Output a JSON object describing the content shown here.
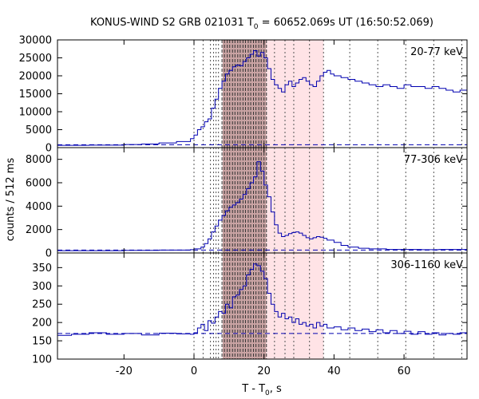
{
  "chart_data": {
    "type": "line",
    "title_parts": {
      "prefix": "KONUS-WIND S2 GRB 021031 T",
      "sub": "0",
      "suffix": " = 60652.069s UT (16:50:52.069)"
    },
    "xlabel_parts": {
      "prefix": "T - T",
      "sub": "0",
      "suffix": ", s"
    },
    "ylabel": "counts / 512 ms",
    "xlim": [
      -39,
      78
    ],
    "x_ticks": [
      -20,
      0,
      20,
      40,
      60
    ],
    "x_tick_labels": [
      "-20",
      "0",
      "20",
      "40",
      "60"
    ],
    "vertical_lines": [
      0,
      2.6,
      4.7,
      5.6,
      6.3,
      7.0,
      8.0,
      8.7,
      9.5,
      10.2,
      11.0,
      11.7,
      12.5,
      13.2,
      14.0,
      14.7,
      15.5,
      16.2,
      17.0,
      17.7,
      18.5,
      19.2,
      20.0,
      20.7,
      23.0,
      26.0,
      28.5,
      33.0,
      37.0,
      44.5,
      52.5,
      60.5,
      68.5,
      76.5
    ],
    "shaded_regions": [
      {
        "from": 8.2,
        "to": 20.6,
        "color": "#c9a3a3"
      },
      {
        "from": 20.6,
        "to": 37.0,
        "color": "#ffe3e6"
      }
    ],
    "series_color": "#0000b0",
    "background_line_style": "dashed",
    "panels": [
      {
        "label": "20-77 keV",
        "ylim": [
          0,
          30000
        ],
        "y_ticks": [
          0,
          5000,
          10000,
          15000,
          20000,
          25000,
          30000
        ],
        "y_tick_labels": [
          "0",
          "5000",
          "10000",
          "15000",
          "20000",
          "25000",
          "30000"
        ],
        "background": 800,
        "curve": [
          [
            -39,
            650
          ],
          [
            -30,
            700
          ],
          [
            -20,
            850
          ],
          [
            -15,
            1000
          ],
          [
            -10,
            1300
          ],
          [
            -5,
            1700
          ],
          [
            -1,
            2500
          ],
          [
            0,
            3500
          ],
          [
            1,
            5000
          ],
          [
            2,
            5800
          ],
          [
            3,
            7200
          ],
          [
            4,
            8000
          ],
          [
            5,
            11000
          ],
          [
            6,
            13500
          ],
          [
            7,
            16500
          ],
          [
            8,
            18500
          ],
          [
            9,
            20500
          ],
          [
            10,
            21500
          ],
          [
            11,
            22500
          ],
          [
            12,
            23000
          ],
          [
            13,
            22800
          ],
          [
            14,
            24000
          ],
          [
            15,
            25000
          ],
          [
            16,
            26000
          ],
          [
            17,
            27000
          ],
          [
            18,
            25500
          ],
          [
            19,
            26500
          ],
          [
            20,
            25000
          ],
          [
            21,
            22000
          ],
          [
            22,
            19000
          ],
          [
            23,
            17500
          ],
          [
            24,
            16500
          ],
          [
            25,
            15500
          ],
          [
            26,
            17500
          ],
          [
            27,
            18500
          ],
          [
            28,
            17000
          ],
          [
            29,
            18000
          ],
          [
            30,
            19000
          ],
          [
            31,
            19500
          ],
          [
            32,
            18500
          ],
          [
            33,
            17500
          ],
          [
            34,
            17000
          ],
          [
            35,
            18500
          ],
          [
            36,
            20000
          ],
          [
            37,
            21000
          ],
          [
            38,
            21500
          ],
          [
            39,
            20500
          ],
          [
            40,
            20000
          ],
          [
            42,
            19500
          ],
          [
            44,
            19000
          ],
          [
            46,
            18500
          ],
          [
            48,
            18000
          ],
          [
            50,
            17500
          ],
          [
            52,
            17000
          ],
          [
            54,
            17500
          ],
          [
            56,
            17000
          ],
          [
            58,
            16500
          ],
          [
            60,
            17500
          ],
          [
            62,
            17000
          ],
          [
            64,
            17000
          ],
          [
            66,
            16500
          ],
          [
            68,
            17000
          ],
          [
            70,
            16500
          ],
          [
            72,
            16000
          ],
          [
            74,
            15500
          ],
          [
            76,
            16000
          ],
          [
            78,
            15500
          ]
        ]
      },
      {
        "label": "77-306 keV",
        "ylim": [
          0,
          9000
        ],
        "y_ticks": [
          0,
          2000,
          4000,
          6000,
          8000
        ],
        "y_tick_labels": [
          "0",
          "2000",
          "4000",
          "6000",
          "8000"
        ],
        "background": 250,
        "curve": [
          [
            -39,
            200
          ],
          [
            -20,
            220
          ],
          [
            -10,
            250
          ],
          [
            -1,
            280
          ],
          [
            0,
            350
          ],
          [
            2,
            500
          ],
          [
            3,
            800
          ],
          [
            4,
            1200
          ],
          [
            5,
            1800
          ],
          [
            6,
            2300
          ],
          [
            7,
            2800
          ],
          [
            8,
            3200
          ],
          [
            9,
            3600
          ],
          [
            10,
            3900
          ],
          [
            11,
            4100
          ],
          [
            12,
            4300
          ],
          [
            13,
            4600
          ],
          [
            14,
            5000
          ],
          [
            15,
            5500
          ],
          [
            16,
            6000
          ],
          [
            17,
            6500
          ],
          [
            18,
            7800
          ],
          [
            19,
            7000
          ],
          [
            20,
            5800
          ],
          [
            21,
            4800
          ],
          [
            22,
            3500
          ],
          [
            23,
            2400
          ],
          [
            24,
            1700
          ],
          [
            25,
            1400
          ],
          [
            26,
            1500
          ],
          [
            27,
            1650
          ],
          [
            28,
            1750
          ],
          [
            29,
            1800
          ],
          [
            30,
            1700
          ],
          [
            31,
            1500
          ],
          [
            32,
            1300
          ],
          [
            33,
            1200
          ],
          [
            34,
            1300
          ],
          [
            35,
            1400
          ],
          [
            36,
            1350
          ],
          [
            37,
            1250
          ],
          [
            38,
            1100
          ],
          [
            40,
            900
          ],
          [
            42,
            650
          ],
          [
            44,
            500
          ],
          [
            47,
            400
          ],
          [
            50,
            350
          ],
          [
            55,
            300
          ],
          [
            60,
            300
          ],
          [
            65,
            280
          ],
          [
            70,
            300
          ],
          [
            78,
            280
          ]
        ]
      },
      {
        "label": "306-1160 keV",
        "ylim": [
          100,
          390
        ],
        "y_ticks": [
          100,
          150,
          200,
          250,
          300,
          350
        ],
        "y_tick_labels": [
          "100",
          "150",
          "200",
          "250",
          "300",
          "350"
        ],
        "background": 170,
        "curve": [
          [
            -39,
            165
          ],
          [
            -35,
            168
          ],
          [
            -30,
            172
          ],
          [
            -25,
            168
          ],
          [
            -20,
            170
          ],
          [
            -15,
            166
          ],
          [
            -10,
            171
          ],
          [
            -5,
            169
          ],
          [
            -1,
            168
          ],
          [
            0,
            172
          ],
          [
            1,
            185
          ],
          [
            2,
            195
          ],
          [
            3,
            178
          ],
          [
            4,
            205
          ],
          [
            5,
            198
          ],
          [
            6,
            215
          ],
          [
            7,
            230
          ],
          [
            8,
            225
          ],
          [
            9,
            250
          ],
          [
            10,
            240
          ],
          [
            11,
            270
          ],
          [
            12,
            275
          ],
          [
            13,
            290
          ],
          [
            14,
            300
          ],
          [
            15,
            330
          ],
          [
            16,
            345
          ],
          [
            17,
            360
          ],
          [
            18,
            355
          ],
          [
            19,
            340
          ],
          [
            20,
            320
          ],
          [
            21,
            280
          ],
          [
            22,
            250
          ],
          [
            23,
            230
          ],
          [
            24,
            215
          ],
          [
            25,
            225
          ],
          [
            26,
            210
          ],
          [
            27,
            215
          ],
          [
            28,
            200
          ],
          [
            29,
            210
          ],
          [
            30,
            195
          ],
          [
            31,
            200
          ],
          [
            32,
            190
          ],
          [
            33,
            195
          ],
          [
            34,
            185
          ],
          [
            35,
            200
          ],
          [
            36,
            190
          ],
          [
            37,
            195
          ],
          [
            38,
            185
          ],
          [
            40,
            188
          ],
          [
            42,
            180
          ],
          [
            44,
            185
          ],
          [
            46,
            178
          ],
          [
            48,
            182
          ],
          [
            50,
            175
          ],
          [
            52,
            180
          ],
          [
            54,
            172
          ],
          [
            56,
            178
          ],
          [
            58,
            170
          ],
          [
            60,
            176
          ],
          [
            62,
            168
          ],
          [
            64,
            175
          ],
          [
            66,
            168
          ],
          [
            68,
            172
          ],
          [
            70,
            166
          ],
          [
            72,
            170
          ],
          [
            74,
            168
          ],
          [
            76,
            172
          ],
          [
            78,
            170
          ]
        ]
      }
    ]
  }
}
